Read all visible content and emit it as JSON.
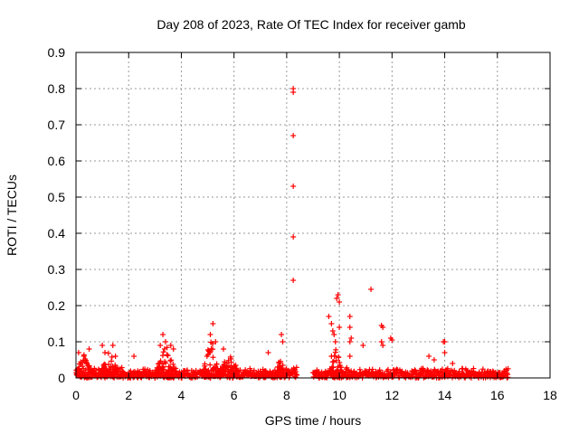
{
  "chart_data": {
    "type": "scatter",
    "title": "Day 208 of 2023, Rate Of TEC Index for receiver gamb",
    "xlabel": "GPS time / hours",
    "ylabel": "ROTI / TECUs",
    "xlim": [
      0,
      18
    ],
    "ylim": [
      0,
      0.9
    ],
    "x_ticks": [
      "0",
      "2",
      "4",
      "6",
      "8",
      "10",
      "12",
      "14",
      "16",
      "18"
    ],
    "y_ticks": [
      "0",
      "0.1",
      "0.2",
      "0.3",
      "0.4",
      "0.5",
      "0.6",
      "0.7",
      "0.8",
      "0.9"
    ],
    "grid": true,
    "marker": "+",
    "color": "#ff0000",
    "background_band": {
      "segments": [
        [
          0.0,
          8.4
        ],
        [
          9.0,
          16.4
        ]
      ],
      "baseline_max": 0.03
    },
    "spikes": [
      {
        "x": 0.1,
        "y": 0.07
      },
      {
        "x": 0.3,
        "y": 0.06
      },
      {
        "x": 0.5,
        "y": 0.08
      },
      {
        "x": 1.0,
        "y": 0.09
      },
      {
        "x": 1.1,
        "y": 0.07
      },
      {
        "x": 1.4,
        "y": 0.09
      },
      {
        "x": 1.5,
        "y": 0.06
      },
      {
        "x": 2.2,
        "y": 0.06
      },
      {
        "x": 3.2,
        "y": 0.09
      },
      {
        "x": 3.3,
        "y": 0.12
      },
      {
        "x": 3.4,
        "y": 0.1
      },
      {
        "x": 3.6,
        "y": 0.09
      },
      {
        "x": 3.7,
        "y": 0.08
      },
      {
        "x": 5.1,
        "y": 0.12
      },
      {
        "x": 5.2,
        "y": 0.15
      },
      {
        "x": 5.3,
        "y": 0.1
      },
      {
        "x": 5.6,
        "y": 0.08
      },
      {
        "x": 7.3,
        "y": 0.07
      },
      {
        "x": 7.8,
        "y": 0.12
      },
      {
        "x": 7.85,
        "y": 0.1
      },
      {
        "x": 8.25,
        "y": 0.8
      },
      {
        "x": 8.25,
        "y": 0.79
      },
      {
        "x": 8.25,
        "y": 0.67
      },
      {
        "x": 8.25,
        "y": 0.53
      },
      {
        "x": 8.25,
        "y": 0.39
      },
      {
        "x": 8.25,
        "y": 0.27
      },
      {
        "x": 9.6,
        "y": 0.17
      },
      {
        "x": 9.7,
        "y": 0.15
      },
      {
        "x": 9.75,
        "y": 0.13
      },
      {
        "x": 9.8,
        "y": 0.12
      },
      {
        "x": 9.85,
        "y": 0.1
      },
      {
        "x": 9.9,
        "y": 0.22
      },
      {
        "x": 9.95,
        "y": 0.23
      },
      {
        "x": 10.0,
        "y": 0.21
      },
      {
        "x": 10.0,
        "y": 0.14
      },
      {
        "x": 9.7,
        "y": 0.06
      },
      {
        "x": 10.4,
        "y": 0.17
      },
      {
        "x": 10.4,
        "y": 0.14
      },
      {
        "x": 10.4,
        "y": 0.1
      },
      {
        "x": 10.45,
        "y": 0.11
      },
      {
        "x": 10.4,
        "y": 0.06
      },
      {
        "x": 10.9,
        "y": 0.09
      },
      {
        "x": 11.2,
        "y": 0.245
      },
      {
        "x": 11.6,
        "y": 0.145
      },
      {
        "x": 11.65,
        "y": 0.14
      },
      {
        "x": 11.6,
        "y": 0.1
      },
      {
        "x": 11.65,
        "y": 0.09
      },
      {
        "x": 11.95,
        "y": 0.11
      },
      {
        "x": 12.0,
        "y": 0.105
      },
      {
        "x": 13.4,
        "y": 0.06
      },
      {
        "x": 13.6,
        "y": 0.05
      },
      {
        "x": 13.95,
        "y": 0.1
      },
      {
        "x": 14.0,
        "y": 0.1
      },
      {
        "x": 14.0,
        "y": 0.07
      },
      {
        "x": 14.3,
        "y": 0.04
      }
    ],
    "bumps": [
      {
        "x0": 0.0,
        "x1": 0.6,
        "peak": 0.06
      },
      {
        "x0": 0.9,
        "x1": 1.6,
        "peak": 0.06
      },
      {
        "x0": 3.0,
        "x1": 3.8,
        "peak": 0.08
      },
      {
        "x0": 4.8,
        "x1": 5.4,
        "peak": 0.1
      },
      {
        "x0": 5.4,
        "x1": 6.2,
        "peak": 0.05
      },
      {
        "x0": 7.6,
        "x1": 7.9,
        "peak": 0.06
      },
      {
        "x0": 9.6,
        "x1": 10.1,
        "peak": 0.08
      }
    ]
  }
}
